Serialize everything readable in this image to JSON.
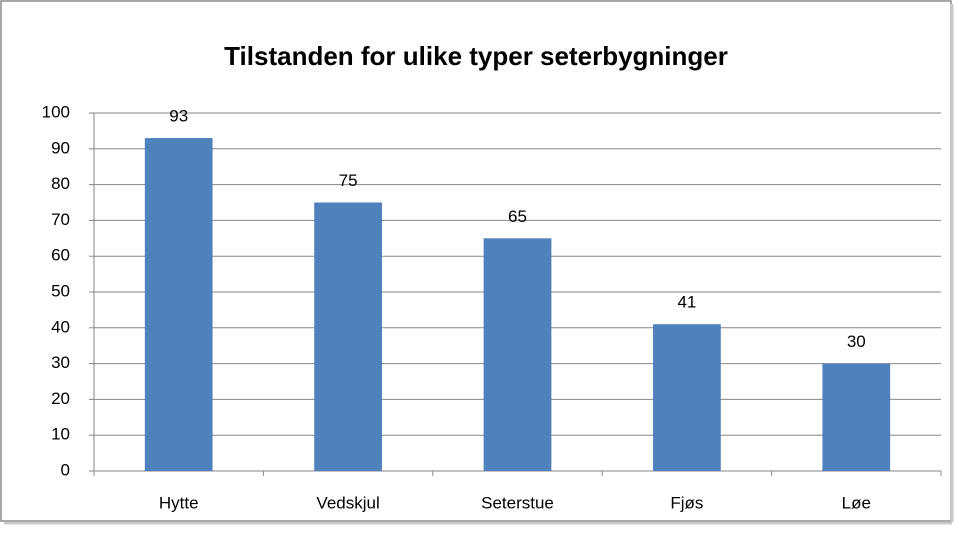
{
  "chart_data": {
    "type": "bar",
    "title": "Tilstanden for ulike typer seterbygninger",
    "categories": [
      "Hytte",
      "Vedskjul",
      "Seterstue",
      "Fjøs",
      "Løe"
    ],
    "values": [
      93,
      75,
      65,
      41,
      30
    ],
    "color": "#4f81bd",
    "ylim": [
      0,
      100
    ],
    "yticks": [
      0,
      10,
      20,
      30,
      40,
      50,
      60,
      70,
      80,
      90,
      100
    ],
    "grid": true
  }
}
